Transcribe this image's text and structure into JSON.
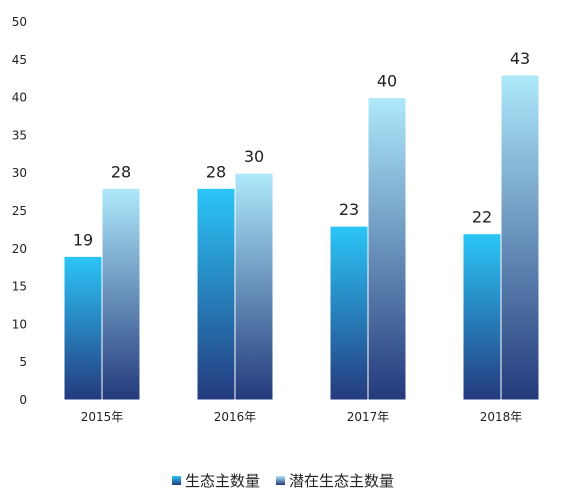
{
  "chart_data": {
    "type": "bar",
    "categories": [
      "2015年",
      "2016年",
      "2017年",
      "2018年"
    ],
    "series": [
      {
        "name": "生态主数量",
        "values": [
          19,
          28,
          23,
          22
        ],
        "color_top": "#2BC6F8",
        "color_bottom": "#243A7E"
      },
      {
        "name": "潜在生态主数量",
        "values": [
          28,
          30,
          40,
          43
        ],
        "color_top": "#AEE9FB",
        "color_bottom": "#233A7B"
      }
    ],
    "ylim": [
      0,
      50
    ],
    "yticks": [
      0,
      5,
      10,
      15,
      20,
      25,
      30,
      35,
      40,
      45,
      50
    ],
    "grid": false,
    "legend_position": "bottom"
  }
}
